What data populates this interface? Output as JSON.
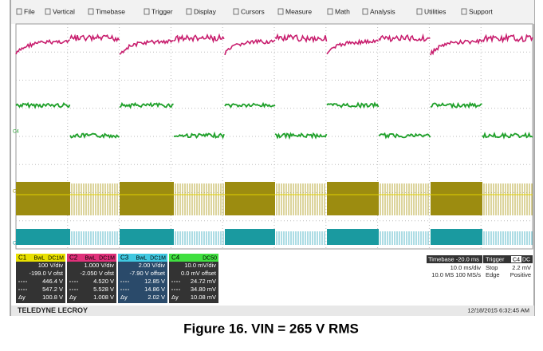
{
  "menu": [
    "File",
    "Vertical",
    "Timebase",
    "Trigger",
    "Display",
    "Cursors",
    "Measure",
    "Math",
    "Analysis",
    "Utilities",
    "Support"
  ],
  "channel_markers": [
    "C4",
    "C1",
    "C3"
  ],
  "channels": [
    {
      "name": "C1",
      "tags": [
        "BwL",
        "DC1M"
      ],
      "color": "#e8e000",
      "rows": [
        "100 V/div",
        "-199.0 V ofst",
        "446.4 V",
        "547.2 V",
        "100.8 V"
      ]
    },
    {
      "name": "C2",
      "tags": [
        "BwL",
        "DC1M"
      ],
      "color": "#e0307a",
      "rows": [
        "1.000 V/div",
        "-2.050 V ofst",
        "4.520 V",
        "5.528 V",
        "1.008 V"
      ]
    },
    {
      "name": "C3",
      "tags": [
        "BwL",
        "DC1M"
      ],
      "color": "#40c8e0",
      "rows": [
        "2.00 V/div",
        "-7.90 V offset",
        "12.85 V",
        "14.86 V",
        "2.02 V"
      ]
    },
    {
      "name": "C4",
      "tags": [
        "DC50"
      ],
      "color": "#40e040",
      "rows": [
        "10.0 mV/div",
        "0.0 mV offset",
        "24.72 mV",
        "34.80 mV",
        "10.08 mV"
      ]
    }
  ],
  "delta_label": "Δy",
  "timebase": {
    "title": "Timebase -20.0 ms",
    "rows": [
      "10.0 ms/div",
      "10.0 MS  100 MS/s"
    ]
  },
  "trigger": {
    "title": "Trigger",
    "source": "C4",
    "coupling": "DC",
    "rows": [
      [
        "Stop",
        "2.2 mV"
      ],
      [
        "Edge",
        "Positive"
      ]
    ]
  },
  "footer": {
    "brand": "TELEDYNE LECROY",
    "timestamp": "12/18/2015 6:32:45 AM"
  },
  "caption": "Figure 16. VIN = 265 V RMS"
}
